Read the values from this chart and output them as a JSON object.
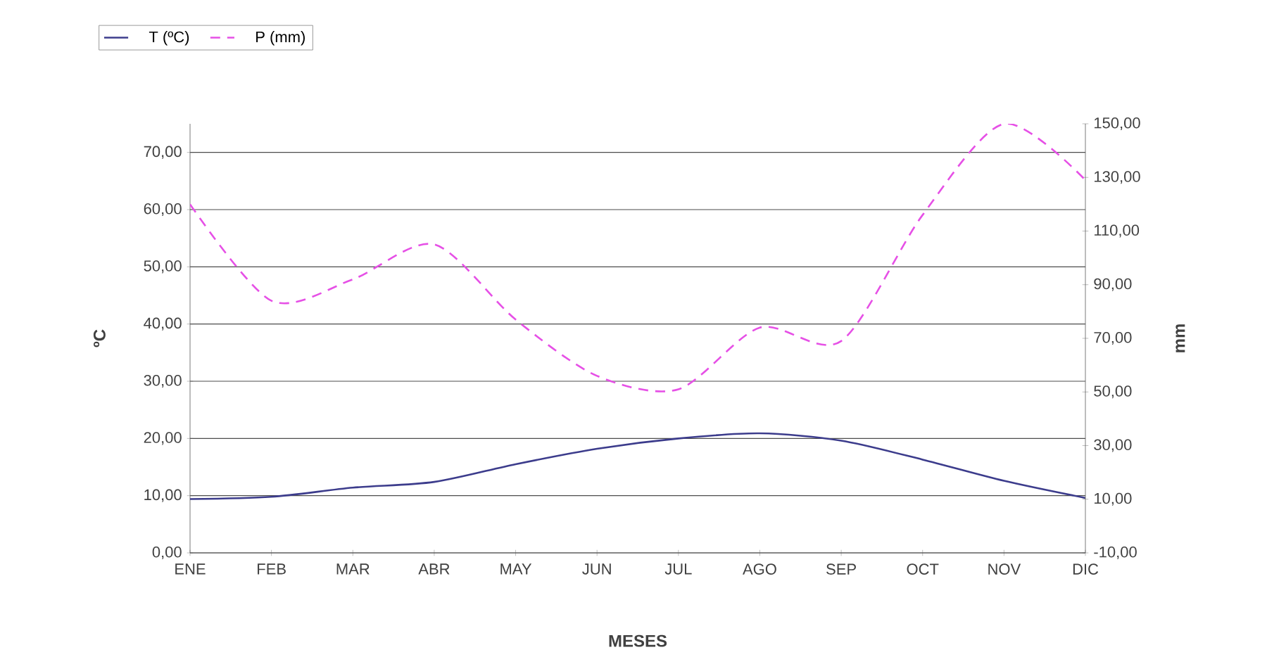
{
  "chart_data": {
    "type": "line",
    "xlabel": "MESES",
    "ylabel": "ºC",
    "y2label": "mm",
    "categories": [
      "ENE",
      "FEB",
      "MAR",
      "ABR",
      "MAY",
      "JUN",
      "JUL",
      "AGO",
      "SEP",
      "OCT",
      "NOV",
      "DIC"
    ],
    "series": [
      {
        "name": "T (ºC)",
        "color": "#3c3c8c",
        "line_style": "solid",
        "values": [
          9.4,
          9.8,
          11.4,
          12.4,
          15.5,
          18.2,
          20.0,
          20.9,
          19.6,
          16.3,
          12.6,
          9.6
        ]
      },
      {
        "name": "P (mm)",
        "color": "#e650e6",
        "line_style": "dashed",
        "axis": "y2",
        "values": [
          120,
          84,
          92,
          105,
          77,
          56,
          51,
          74,
          69,
          116,
          150,
          129
        ]
      }
    ],
    "ylim": [
      0,
      75
    ],
    "yticks": [
      {
        "value": 0,
        "label": "0,00"
      },
      {
        "value": 10,
        "label": "10,00"
      },
      {
        "value": 20,
        "label": "20,00"
      },
      {
        "value": 30,
        "label": "30,00"
      },
      {
        "value": 40,
        "label": "40,00"
      },
      {
        "value": 50,
        "label": "50,00"
      },
      {
        "value": 60,
        "label": "60,00"
      },
      {
        "value": 70,
        "label": "70,00"
      }
    ],
    "y2lim": [
      -10,
      150
    ],
    "y2ticks": [
      {
        "value": -10,
        "label": "-10,00"
      },
      {
        "value": 10,
        "label": "10,00"
      },
      {
        "value": 30,
        "label": "30,00"
      },
      {
        "value": 50,
        "label": "50,00"
      },
      {
        "value": 70,
        "label": "70,00"
      },
      {
        "value": 90,
        "label": "90,00"
      },
      {
        "value": 110,
        "label": "110,00"
      },
      {
        "value": 130,
        "label": "130,00"
      },
      {
        "value": 150,
        "label": "150,00"
      }
    ],
    "grid": "y",
    "legend": "top left",
    "marker": "none"
  }
}
